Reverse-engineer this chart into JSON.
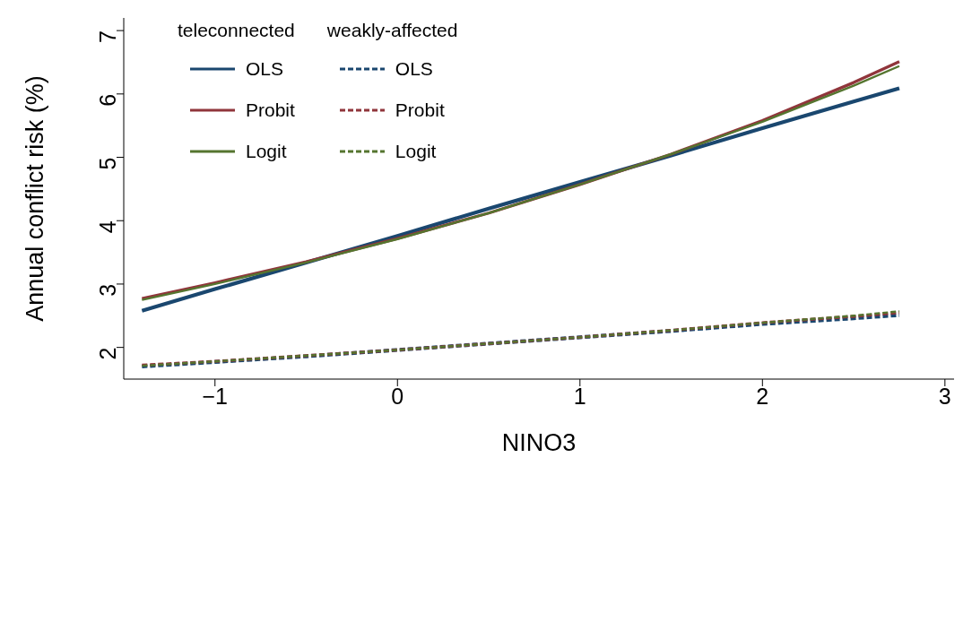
{
  "chart_data": {
    "type": "line",
    "xlabel": "NINO3",
    "ylabel": "Annual conflict risk (%)",
    "x": [
      -1.4,
      -1,
      -0.5,
      0,
      0.5,
      1,
      1.5,
      2,
      2.5,
      2.75
    ],
    "xlim": [
      -1.5,
      3.05
    ],
    "xticks": [
      {
        "value": -1,
        "label": "−1"
      },
      0,
      1,
      2,
      3
    ],
    "ylim": [
      1.5,
      7.2
    ],
    "yticks": [
      2,
      3,
      4,
      5,
      6,
      7
    ],
    "grid": false,
    "legend": "top left",
    "marker": "none",
    "annotations": [
      "teleconnected",
      "weakly-affected"
    ],
    "series": [
      {
        "name": "OLS",
        "color": "#1a476f",
        "line_style": "solid",
        "values": [
          2.58,
          2.92,
          3.34,
          3.76,
          4.19,
          4.61,
          5.03,
          5.46,
          5.88,
          6.09
        ]
      },
      {
        "name": "Probit",
        "color": "#90353b",
        "line_style": "solid",
        "values": [
          2.77,
          3.02,
          3.35,
          3.72,
          4.12,
          4.57,
          5.05,
          5.58,
          6.18,
          6.51
        ]
      },
      {
        "name": "Logit",
        "color": "#55752f",
        "line_style": "solid",
        "values": [
          2.75,
          3.0,
          3.34,
          3.71,
          4.12,
          4.57,
          5.05,
          5.56,
          6.13,
          6.44
        ]
      },
      {
        "name": "OLS",
        "color": "#1a476f",
        "line_style": "dashed",
        "values": [
          1.7,
          1.77,
          1.86,
          1.96,
          2.06,
          2.16,
          2.26,
          2.37,
          2.46,
          2.51
        ]
      },
      {
        "name": "Probit",
        "color": "#90353b",
        "line_style": "dashed",
        "values": [
          1.72,
          1.78,
          1.87,
          1.96,
          2.06,
          2.16,
          2.27,
          2.39,
          2.49,
          2.55
        ]
      },
      {
        "name": "Logit",
        "color": "#55752f",
        "line_style": "dashed",
        "values": [
          1.71,
          1.78,
          1.87,
          1.96,
          2.06,
          2.16,
          2.27,
          2.39,
          2.5,
          2.57
        ]
      }
    ]
  }
}
